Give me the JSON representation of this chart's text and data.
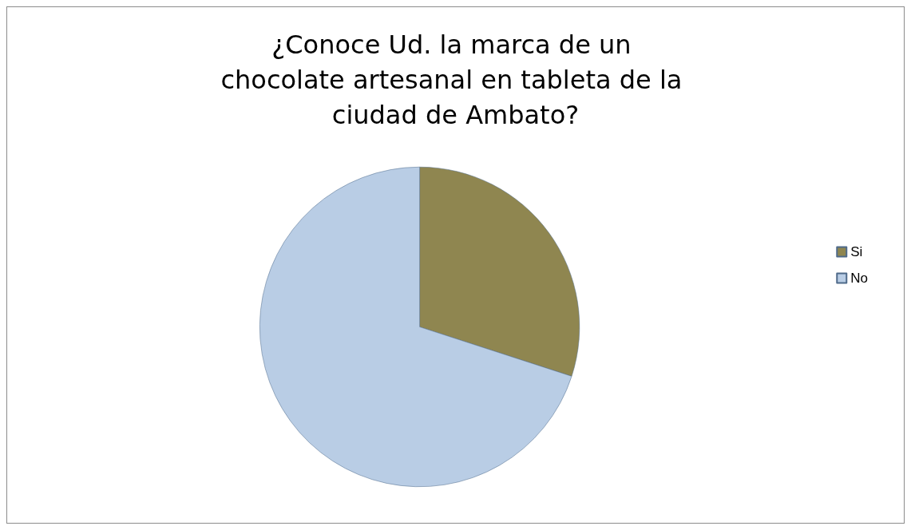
{
  "chart_data": {
    "type": "pie",
    "title": "¿Conoce Ud. la marca de un chocolate artesanal en tableta de la ciudad de Ambato?",
    "categories": [
      "Si",
      "No"
    ],
    "values": [
      30,
      70
    ],
    "colors": [
      "#8f8650",
      "#b9cde5"
    ],
    "legend": "right"
  }
}
